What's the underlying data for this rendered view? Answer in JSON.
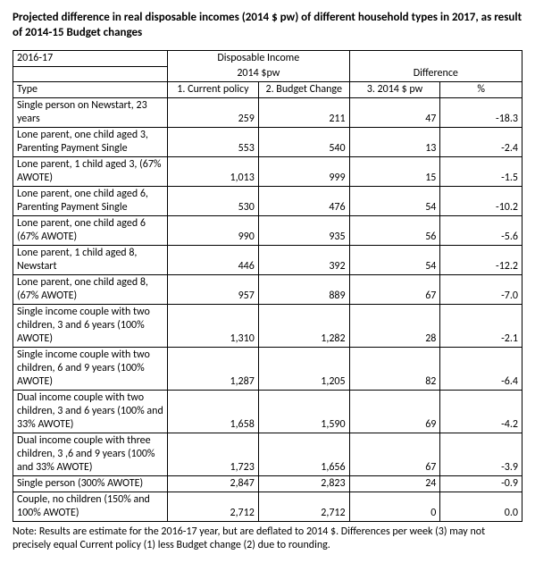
{
  "title": "Projected difference in real disposable incomes (2014 $ pw) of different household types in 2017, as result of 2014-15 Budget changes",
  "header": {
    "period": "2016-17",
    "group1": "Disposable Income",
    "group1_sub": "2014 $pw",
    "group2": "Difference",
    "type_label": "Type",
    "col1": "1.    Current policy",
    "col2": "2.    Budget Change",
    "col3": "3.    2014 $ pw",
    "col4": "%"
  },
  "rows": [
    {
      "type": "Single person on Newstart, 23 years",
      "c1": "259",
      "c2": "211",
      "c3": "47",
      "c4": "-18.3"
    },
    {
      "type": "Lone parent, one child aged 3, Parenting Payment Single",
      "c1": "553",
      "c2": "540",
      "c3": "13",
      "c4": "-2.4"
    },
    {
      "type": "Lone parent, 1 child aged 3, (67% AWOTE)",
      "c1": "1,013",
      "c2": "999",
      "c3": "15",
      "c4": "-1.5"
    },
    {
      "type": "Lone parent, one child aged 6, Parenting Payment Single",
      "c1": "530",
      "c2": "476",
      "c3": "54",
      "c4": "-10.2"
    },
    {
      "type": "Lone parent, one child aged 6 (67% AWOTE)",
      "c1": "990",
      "c2": "935",
      "c3": "56",
      "c4": "-5.6"
    },
    {
      "type": "Lone parent, 1 child aged 8, Newstart",
      "c1": "446",
      "c2": "392",
      "c3": "54",
      "c4": "-12.2"
    },
    {
      "type": "Lone parent, one child aged 8, (67% AWOTE)",
      "c1": "957",
      "c2": "889",
      "c3": "67",
      "c4": "-7.0"
    },
    {
      "type": "Single income couple with two children, 3 and 6 years (100% AWOTE)",
      "c1": "1,310",
      "c2": "1,282",
      "c3": "28",
      "c4": "-2.1"
    },
    {
      "type": "Single income couple with two children, 6 and 9 years (100% AWOTE)",
      "c1": "1,287",
      "c2": "1,205",
      "c3": "82",
      "c4": "-6.4"
    },
    {
      "type": "Dual income couple with two children, 3 and 6 years (100% and 33% AWOTE)",
      "c1": "1,658",
      "c2": "1,590",
      "c3": "69",
      "c4": "-4.2"
    },
    {
      "type": "Dual income couple with three children, 3 ,6  and 9 years (100% and 33% AWOTE)",
      "c1": "1,723",
      "c2": "1,656",
      "c3": "67",
      "c4": "-3.9"
    },
    {
      "type": "Single person (300% AWOTE)",
      "c1": "2,847",
      "c2": "2,823",
      "c3": "24",
      "c4": "-0.9"
    },
    {
      "type": "Couple, no children (150% and 100% AWOTE)",
      "c1": "2,712",
      "c2": "2,712",
      "c3": "0",
      "c4": "0.0"
    }
  ],
  "note": "Note: Results are estimate for the 2016-17 year, but are deflated to 2014 $. Differences per week (3) may not precisely equal Current policy (1) less Budget change (2) due to rounding."
}
